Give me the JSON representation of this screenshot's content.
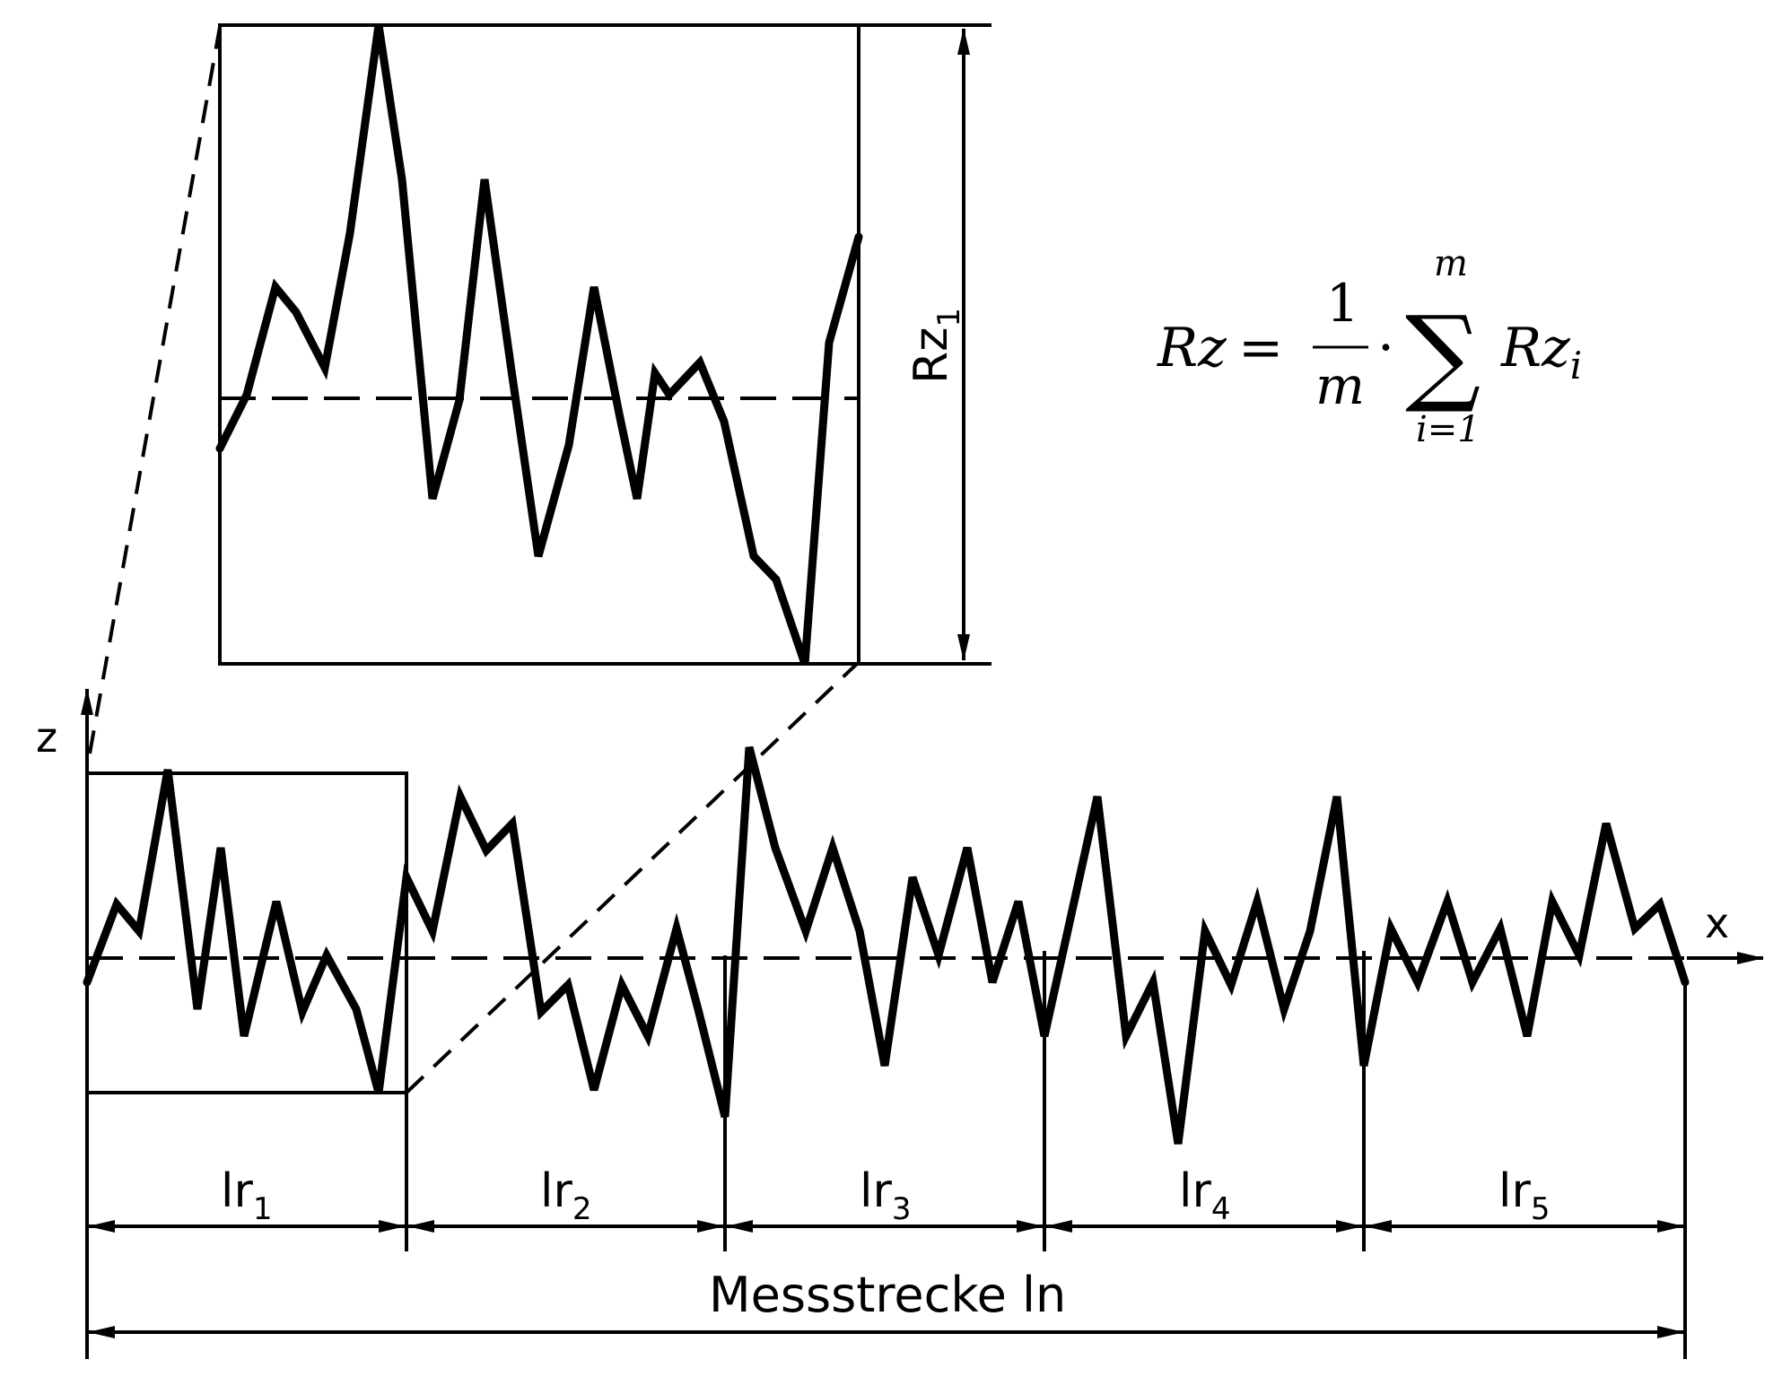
{
  "axes": {
    "z_label": "z",
    "x_label": "x"
  },
  "segments": [
    {
      "base": "lr",
      "sub": "1"
    },
    {
      "base": "lr",
      "sub": "2"
    },
    {
      "base": "lr",
      "sub": "3"
    },
    {
      "base": "lr",
      "sub": "4"
    },
    {
      "base": "lr",
      "sub": "5"
    }
  ],
  "total_length_label": "Messstrecke ln",
  "inset": {
    "height_label_base": "Rz",
    "height_label_sub": "1"
  },
  "formula": {
    "lhs": "Rz",
    "equals": "=",
    "numerator": "1",
    "denominator": "m",
    "dot": "·",
    "sum_symbol": "∑",
    "upper_limit": "m",
    "lower_limit": "i=1",
    "term_base": "Rz",
    "term_sub": "i"
  },
  "colors": {
    "ink": "#000000",
    "background": "#ffffff"
  }
}
